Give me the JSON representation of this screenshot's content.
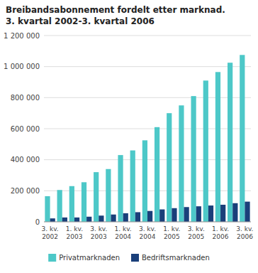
{
  "chart_data": {
    "type": "bar",
    "title": "Breibandsabonnement fordelt etter marknad.",
    "subtitle": "3. kvartal 2002-3. kvartal 2006",
    "categories": [
      "3. kv.\n2002",
      null,
      "1. kv.\n2003",
      null,
      "3. kv.\n2003",
      null,
      "1. kv.\n2004",
      null,
      "3. kv.\n2004",
      null,
      "1. kv.\n2005",
      null,
      "3. kv.\n2005",
      null,
      "1. kv.\n2006",
      null,
      "3. kv.\n2006"
    ],
    "series": [
      {
        "name": "Privatmarknaden",
        "color": "#4DC8C8",
        "values": [
          165000,
          205000,
          230000,
          255000,
          320000,
          340000,
          430000,
          460000,
          525000,
          610000,
          700000,
          750000,
          810000,
          910000,
          965000,
          1025000,
          1075000
        ]
      },
      {
        "name": "Bedriftsmarknaden",
        "color": "#1A3F7A",
        "values": [
          22000,
          28000,
          28000,
          33000,
          40000,
          47000,
          55000,
          62000,
          70000,
          80000,
          88000,
          95000,
          100000,
          105000,
          110000,
          120000,
          130000
        ]
      }
    ],
    "ylim": [
      0,
      1200000
    ],
    "yticks": [
      0,
      {
        "value": 200000,
        "label": "200 000"
      },
      {
        "value": 400000,
        "label": "400 000"
      },
      {
        "value": 600000,
        "label": "600 000"
      },
      {
        "value": 800000,
        "label": "800 000"
      },
      {
        "value": 1000000,
        "label": "1 000 000"
      },
      {
        "value": 1200000,
        "label": "1 200 000"
      }
    ],
    "grid": true,
    "legend": "bottom"
  }
}
